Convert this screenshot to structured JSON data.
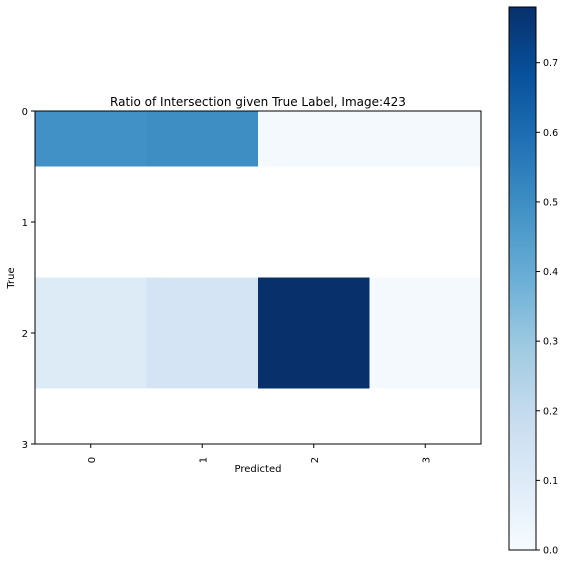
{
  "chart_data": {
    "type": "heatmap",
    "title": "Ratio of Intersection given True Label, Image:423",
    "xlabel": "Predicted",
    "ylabel": "True",
    "x_categories": [
      "0",
      "1",
      "2",
      "3"
    ],
    "y_categories": [
      "0",
      "1",
      "2",
      "3"
    ],
    "y_ticks": [
      "0",
      "1",
      "2",
      "3"
    ],
    "rows": [
      {
        "label": "0",
        "values": [
          0.49,
          0.5,
          0.01,
          0.01
        ]
      },
      {
        "label": "1",
        "values": [
          null,
          null,
          null,
          null
        ]
      },
      {
        "label": "2",
        "values": [
          0.1,
          0.14,
          0.78,
          0.01
        ]
      },
      {
        "label": "3",
        "values": [
          null,
          null,
          null,
          null
        ]
      }
    ],
    "colormap": "Blues",
    "color_range": [
      0.0,
      0.78
    ],
    "colorbar_ticks": [
      "0.0",
      "0.1",
      "0.2",
      "0.3",
      "0.4",
      "0.5",
      "0.6",
      "0.7"
    ],
    "colorbar_tick_values": [
      0.0,
      0.1,
      0.2,
      0.3,
      0.4,
      0.5,
      0.6,
      0.7
    ],
    "grid": false
  }
}
